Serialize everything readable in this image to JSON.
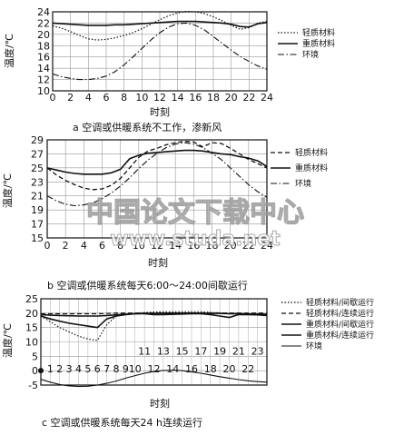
{
  "chart_data": [
    {
      "type": "line",
      "caption": "a  空调或供暖系统不工作，渗新风",
      "xlabel": "时刻",
      "ylabel": "温度/℃",
      "xlim": [
        0,
        24
      ],
      "ylim": [
        10,
        24
      ],
      "xticks": [
        "0",
        "2",
        "4",
        "6",
        "8",
        "10",
        "12",
        "14",
        "16",
        "18",
        "20",
        "22",
        "24"
      ],
      "yticks": [
        "10",
        "12",
        "14",
        "16",
        "18",
        "20",
        "22",
        "24"
      ],
      "grid": true,
      "legend_position": "right",
      "x": [
        0,
        1,
        2,
        3,
        4,
        5,
        6,
        7,
        8,
        9,
        10,
        11,
        12,
        13,
        14,
        15,
        16,
        17,
        18,
        19,
        20,
        21,
        22,
        23,
        24
      ],
      "series": [
        {
          "name": "轻质材料",
          "style": "dotted",
          "values": [
            21.5,
            21.1,
            20.5,
            19.8,
            19.2,
            19.0,
            19.1,
            19.4,
            19.8,
            20.3,
            21.0,
            21.8,
            22.6,
            23.3,
            23.8,
            24.1,
            24.0,
            23.7,
            23.1,
            22.4,
            21.6,
            20.9,
            21.2,
            22.0,
            22.3
          ]
        },
        {
          "name": "重质材料",
          "style": "solid",
          "values": [
            22.0,
            21.9,
            21.8,
            21.7,
            21.6,
            21.6,
            21.6,
            21.7,
            21.7,
            21.8,
            21.9,
            22.0,
            22.1,
            22.2,
            22.3,
            22.3,
            22.3,
            22.2,
            22.1,
            22.0,
            21.8,
            21.4,
            21.3,
            21.9,
            22.1
          ]
        },
        {
          "name": "环境",
          "style": "dashdot",
          "values": [
            13.0,
            12.5,
            12.2,
            12.0,
            12.0,
            12.2,
            12.6,
            13.4,
            14.6,
            16.0,
            17.5,
            19.0,
            20.3,
            21.3,
            21.9,
            22.0,
            21.6,
            20.8,
            19.6,
            18.4,
            17.2,
            16.1,
            15.2,
            14.4,
            13.8
          ]
        }
      ]
    },
    {
      "type": "line",
      "caption": "b  空调或供暖系统每天6:00～24:00间歇运行",
      "xlabel": "时刻",
      "ylabel": "温度/℃",
      "xlim": [
        0,
        24
      ],
      "ylim": [
        15,
        29
      ],
      "xticks": [
        "0",
        "2",
        "4",
        "6",
        "8",
        "10",
        "12",
        "14",
        "16",
        "18",
        "20",
        "22",
        "24"
      ],
      "yticks": [
        "15",
        "17",
        "19",
        "21",
        "23",
        "25",
        "27",
        "29"
      ],
      "grid": true,
      "legend_position": "right",
      "x": [
        0,
        1,
        2,
        3,
        4,
        5,
        6,
        7,
        8,
        9,
        10,
        11,
        12,
        13,
        14,
        15,
        16,
        17,
        18,
        19,
        20,
        21,
        22,
        23,
        24
      ],
      "series": [
        {
          "name": "轻质材料",
          "style": "dashed",
          "values": [
            25.0,
            24.0,
            23.2,
            22.6,
            22.1,
            21.9,
            22.0,
            22.5,
            23.5,
            25.0,
            26.5,
            27.4,
            27.8,
            28.3,
            28.6,
            28.8,
            28.7,
            28.0,
            28.6,
            28.5,
            27.8,
            27.0,
            26.2,
            25.6,
            25.0
          ]
        },
        {
          "name": "重质材料",
          "style": "solid",
          "values": [
            25.0,
            24.7,
            24.4,
            24.2,
            24.1,
            24.1,
            24.1,
            24.3,
            24.8,
            26.3,
            26.8,
            27.1,
            27.2,
            27.3,
            27.4,
            27.5,
            27.5,
            27.4,
            27.2,
            27.0,
            26.9,
            26.6,
            26.4,
            26.0,
            25.2
          ]
        },
        {
          "name": "环境",
          "style": "dashdot",
          "values": [
            21.0,
            20.3,
            19.8,
            19.6,
            19.7,
            20.0,
            20.6,
            21.4,
            22.4,
            23.6,
            24.9,
            26.1,
            27.1,
            27.9,
            28.4,
            28.6,
            28.4,
            27.9,
            27.1,
            26.2,
            25.0,
            23.8,
            22.6,
            21.6,
            20.8
          ]
        }
      ]
    },
    {
      "type": "line",
      "caption": "c  空调或供暖系统每天24 h连续运行",
      "xlabel": "时刻",
      "ylabel": "温度/℃",
      "xlim": [
        0,
        24
      ],
      "ylim": [
        -5,
        25
      ],
      "xticks_top": [
        "11",
        "13",
        "15",
        "17",
        "19",
        "21",
        "23"
      ],
      "xticks_bottom": [
        "1",
        "2",
        "3",
        "4",
        "5",
        "6",
        "7",
        "8",
        "9",
        "10",
        "12",
        "14",
        "16",
        "18",
        "20",
        "22"
      ],
      "yticks": [
        "-5",
        "0",
        "5",
        "10",
        "15",
        "20",
        "25"
      ],
      "grid": true,
      "legend_position": "right",
      "x": [
        0,
        1,
        2,
        3,
        4,
        5,
        6,
        7,
        8,
        9,
        10,
        11,
        12,
        13,
        14,
        15,
        16,
        17,
        18,
        19,
        20,
        21,
        22,
        23,
        24
      ],
      "series": [
        {
          "name": "轻质材料/间歇运行",
          "style": "dotted",
          "values": [
            19.0,
            17.0,
            15.0,
            13.5,
            12.0,
            11.0,
            10.5,
            16.0,
            19.0,
            19.5,
            20.0,
            20.2,
            20.4,
            20.5,
            20.5,
            20.5,
            20.5,
            20.5,
            20.3,
            20.1,
            20.0,
            20.0,
            19.8,
            19.8,
            19.6
          ]
        },
        {
          "name": "轻质材料/连续运行",
          "style": "dashed",
          "values": [
            19.8,
            19.8,
            19.8,
            19.8,
            19.8,
            19.8,
            19.8,
            19.9,
            20.0,
            20.0,
            20.0,
            20.0,
            20.0,
            20.0,
            20.0,
            20.0,
            20.0,
            20.0,
            20.0,
            20.0,
            20.0,
            20.0,
            20.0,
            20.0,
            20.0
          ]
        },
        {
          "name": "重质材料/间歇运行",
          "style": "solid",
          "values": [
            19.0,
            18.0,
            17.2,
            16.5,
            16.0,
            15.5,
            15.0,
            18.0,
            19.0,
            19.5,
            19.8,
            19.8,
            19.5,
            19.5,
            19.6,
            19.7,
            19.8,
            19.8,
            19.5,
            19.0,
            18.5,
            19.5,
            19.5,
            19.4,
            19.2
          ]
        },
        {
          "name": "重质材料/连续运行",
          "style": "solid",
          "values": [
            19.5,
            19.3,
            19.2,
            19.1,
            19.0,
            19.0,
            19.0,
            19.2,
            19.4,
            19.6,
            19.8,
            19.9,
            19.9,
            20.0,
            20.0,
            20.0,
            20.0,
            20.0,
            19.9,
            19.9,
            19.8,
            19.8,
            19.7,
            19.7,
            19.6
          ]
        },
        {
          "name": "环境",
          "style": "solid-thin",
          "values": [
            -3.0,
            -4.0,
            -4.8,
            -5.3,
            -5.5,
            -5.4,
            -5.0,
            -4.4,
            -3.6,
            -2.6,
            -1.7,
            -0.9,
            -0.3,
            0.1,
            0.2,
            0.0,
            -0.4,
            -0.9,
            -1.5,
            -2.1,
            -2.6,
            -3.1,
            -3.5,
            -3.8,
            -4.0
          ]
        }
      ]
    }
  ],
  "watermark": {
    "title": "中国论文下载中心",
    "url": "www.studa.net"
  }
}
